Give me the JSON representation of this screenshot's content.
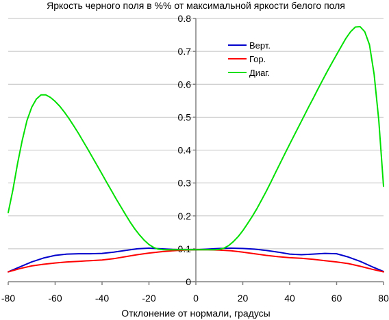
{
  "chart_data": {
    "type": "line",
    "title": "Яркость черного поля в %% от максимальной яркости белого поля",
    "xlabel": "Отклонение от нормали, градусы",
    "ylabel": "",
    "xlim": [
      -80,
      80
    ],
    "ylim": [
      0,
      0.8
    ],
    "x_ticks": [
      -80,
      -60,
      -40,
      -20,
      0,
      20,
      40,
      60,
      80
    ],
    "x_tick_labels": [
      "-80",
      "-60",
      "-40",
      "-20",
      "0",
      "20",
      "40",
      "60",
      "80"
    ],
    "y_ticks": [
      0,
      0.1,
      0.2,
      0.3,
      0.4,
      0.5,
      0.6,
      0.7,
      0.8
    ],
    "y_tick_labels": [
      "0",
      "0.1",
      "0.2",
      "0.3",
      "0.4",
      "0.5",
      "0.6",
      "0.7",
      "0.8"
    ],
    "grid": "horizontal",
    "legend_position": "top-right",
    "series": [
      {
        "name": "Верт.",
        "color": "#0000cc",
        "x": [
          -80,
          -75,
          -70,
          -65,
          -60,
          -55,
          -50,
          -45,
          -40,
          -35,
          -30,
          -25,
          -20,
          -15,
          -10,
          -5,
          0,
          5,
          10,
          15,
          20,
          25,
          30,
          35,
          40,
          45,
          50,
          55,
          60,
          65,
          70,
          75,
          80
        ],
        "y": [
          0.03,
          0.045,
          0.06,
          0.072,
          0.08,
          0.084,
          0.085,
          0.085,
          0.086,
          0.09,
          0.095,
          0.1,
          0.102,
          0.1,
          0.098,
          0.097,
          0.097,
          0.099,
          0.101,
          0.102,
          0.101,
          0.099,
          0.095,
          0.09,
          0.084,
          0.082,
          0.084,
          0.086,
          0.085,
          0.075,
          0.062,
          0.046,
          0.031
        ]
      },
      {
        "name": "Гор.",
        "color": "#ff0000",
        "x": [
          -80,
          -75,
          -70,
          -65,
          -60,
          -55,
          -50,
          -45,
          -40,
          -35,
          -30,
          -25,
          -20,
          -15,
          -10,
          -5,
          0,
          5,
          10,
          15,
          20,
          25,
          30,
          35,
          40,
          45,
          50,
          55,
          60,
          65,
          70,
          75,
          80
        ],
        "y": [
          0.03,
          0.04,
          0.048,
          0.053,
          0.057,
          0.06,
          0.062,
          0.064,
          0.066,
          0.07,
          0.076,
          0.082,
          0.087,
          0.091,
          0.094,
          0.096,
          0.097,
          0.097,
          0.096,
          0.094,
          0.09,
          0.085,
          0.08,
          0.076,
          0.073,
          0.071,
          0.068,
          0.064,
          0.06,
          0.055,
          0.047,
          0.038,
          0.03
        ]
      },
      {
        "name": "Диаг.",
        "color": "#00e000",
        "x": [
          -80,
          -78,
          -76,
          -74,
          -72,
          -70,
          -68,
          -66,
          -64,
          -62,
          -60,
          -58,
          -56,
          -54,
          -52,
          -50,
          -48,
          -46,
          -44,
          -42,
          -40,
          -38,
          -36,
          -34,
          -32,
          -30,
          -28,
          -26,
          -24,
          -22,
          -20,
          -18,
          -16,
          -14,
          -12,
          -10,
          -8,
          -6,
          -4,
          -2,
          0,
          2,
          4,
          6,
          8,
          10,
          12,
          14,
          16,
          18,
          20,
          22,
          24,
          26,
          28,
          30,
          32,
          34,
          36,
          38,
          40,
          42,
          44,
          46,
          48,
          50,
          52,
          54,
          56,
          58,
          60,
          62,
          64,
          66,
          68,
          70,
          72,
          74,
          76,
          78,
          80
        ],
        "y": [
          0.21,
          0.28,
          0.36,
          0.43,
          0.49,
          0.53,
          0.555,
          0.568,
          0.568,
          0.56,
          0.548,
          0.533,
          0.515,
          0.495,
          0.473,
          0.45,
          0.426,
          0.402,
          0.377,
          0.352,
          0.327,
          0.302,
          0.277,
          0.252,
          0.228,
          0.204,
          0.181,
          0.16,
          0.142,
          0.126,
          0.113,
          0.104,
          0.099,
          0.097,
          0.097,
          0.097,
          0.097,
          0.097,
          0.097,
          0.097,
          0.097,
          0.097,
          0.097,
          0.097,
          0.097,
          0.098,
          0.102,
          0.11,
          0.122,
          0.137,
          0.155,
          0.176,
          0.198,
          0.222,
          0.248,
          0.275,
          0.303,
          0.332,
          0.361,
          0.39,
          0.418,
          0.446,
          0.474,
          0.502,
          0.53,
          0.557,
          0.585,
          0.612,
          0.639,
          0.665,
          0.69,
          0.715,
          0.74,
          0.76,
          0.774,
          0.775,
          0.76,
          0.72,
          0.63,
          0.49,
          0.29
        ]
      }
    ]
  }
}
